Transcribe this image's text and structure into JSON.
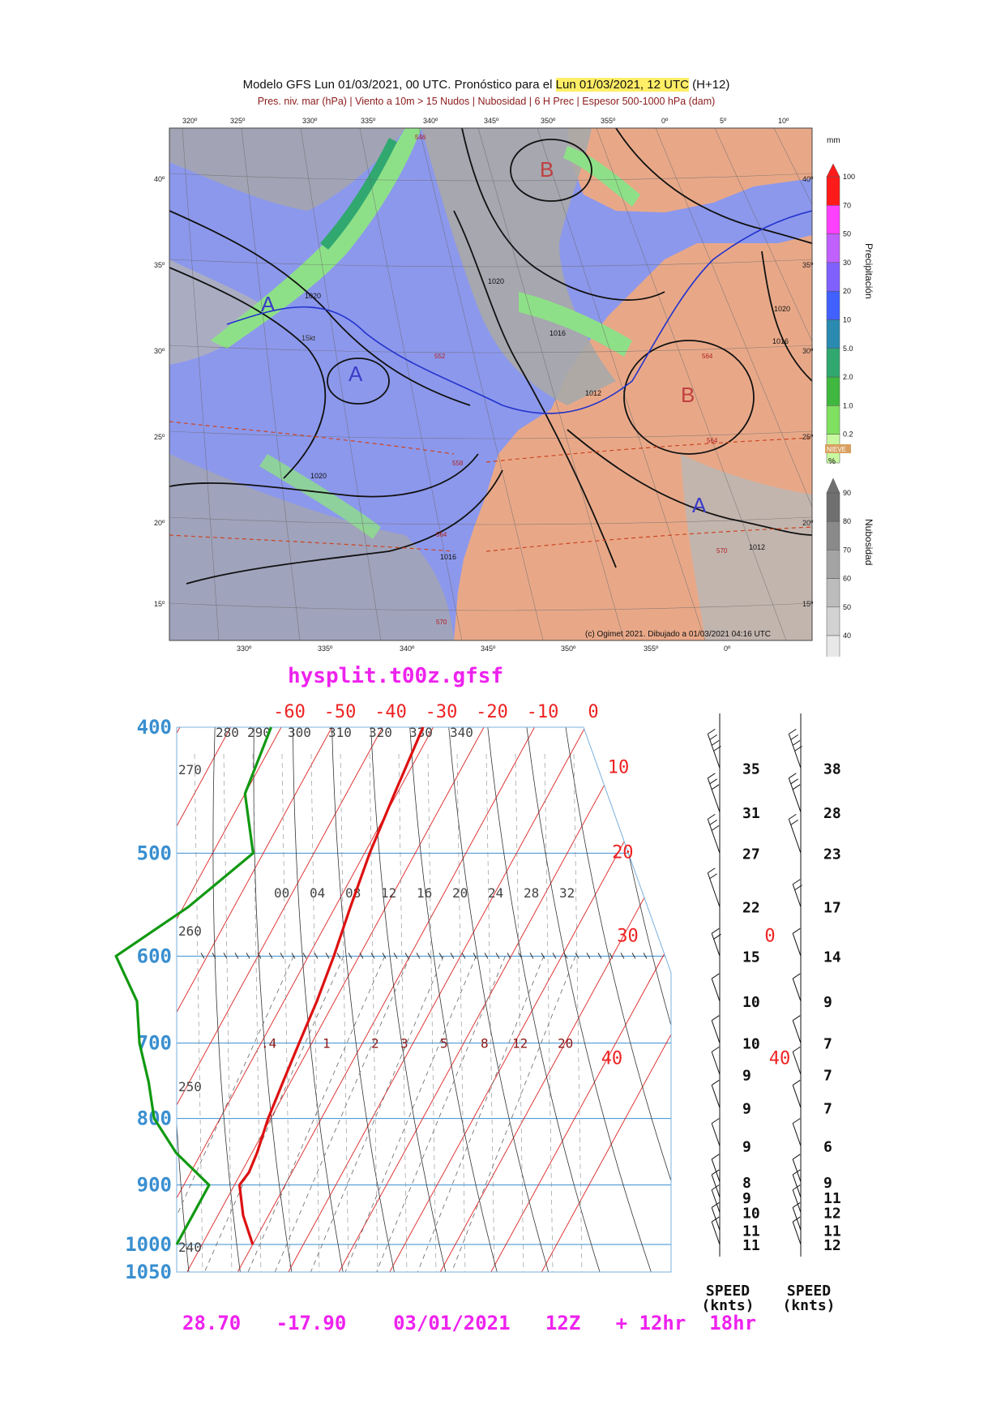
{
  "map": {
    "title_prefix": "Modelo GFS Lun 01/03/2021, 00 UTC. Pronóstico para el ",
    "title_highlight": "Lun 01/03/2021, 12 UTC",
    "title_suffix": " (H+12)",
    "subtitle": "Pres. niv. mar (hPa) | Viento a 10m > 15 Nudos | Nubosidad | 6 H Prec | Espesor 500-1000 hPa (dam)",
    "lon_top": [
      "320º",
      "325º",
      "330º",
      "335º",
      "340º",
      "345º",
      "350º",
      "355º",
      "0º",
      "5º",
      "10º"
    ],
    "lon_bottom": [
      "330º",
      "335º",
      "340º",
      "345º",
      "350º",
      "355º",
      "0º"
    ],
    "lat_left": [
      "40º",
      "35º",
      "30º",
      "25º",
      "20º",
      "15º"
    ],
    "lat_right": [
      "40º",
      "35º",
      "30º",
      "25º",
      "20º",
      "15º"
    ],
    "pressure_centers": [
      {
        "label": "A",
        "kind": "high"
      },
      {
        "label": "A",
        "kind": "high"
      },
      {
        "label": "B",
        "kind": "low"
      },
      {
        "label": "B",
        "kind": "low"
      },
      {
        "label": "A",
        "kind": "high"
      }
    ],
    "isobar_labels": [
      "1020",
      "1020",
      "1016",
      "1012",
      "1020",
      "1016",
      "1020",
      "1016",
      "1012"
    ],
    "thickness_labels": [
      "558",
      "552",
      "564",
      "564",
      "570",
      "546",
      "564",
      "570"
    ],
    "wind_label": "15kt",
    "credit": "(c) Ogimet 2021. Dibujado a 01/03/2021 04:16 UTC",
    "precip_legend": {
      "unit": "mm",
      "title": "Precipitación",
      "values": [
        "100",
        "70",
        "50",
        "30",
        "20",
        "10",
        "5.0",
        "2.0",
        "1.0",
        "0.2"
      ],
      "colors": [
        "#ff1a1a",
        "#ff40ff",
        "#c060ff",
        "#8060ff",
        "#4060ff",
        "#2a8ab0",
        "#30a870",
        "#40b840",
        "#80e060",
        "#c8f8a0"
      ],
      "snow_label": "NIEVE"
    },
    "cloud_legend": {
      "unit": "%",
      "title": "Nubosidad",
      "values": [
        "90",
        "80",
        "70",
        "60",
        "50",
        "40"
      ],
      "colors": [
        "#707070",
        "#8a8a8a",
        "#a4a4a4",
        "#bcbcbc",
        "#d2d2d2",
        "#e8e8e8"
      ]
    },
    "colors": {
      "land": "#e8a888",
      "ocean": "#8c98ec",
      "cloud": "#a8a8a8",
      "precip": "#8ee088",
      "high": "#3c3cc8",
      "low": "#c04040"
    }
  },
  "chart_data": {
    "type": "line",
    "title": "hysplit.t00z.gfsf",
    "footer": "28.70   -17.90    03/01/2021   12Z   + 12hr  18hr",
    "pressure_levels": [
      400,
      500,
      600,
      700,
      800,
      900,
      1000,
      1050
    ],
    "pressure_tick_labels": [
      "400",
      "500",
      "600",
      "700",
      "800",
      "900",
      "1000",
      "1050"
    ],
    "temperature_isotherm_labels": [
      "-60",
      "-50",
      "-40",
      "-30",
      "-20",
      "-10",
      "0",
      "10",
      "20",
      "30",
      "40"
    ],
    "theta_labels": [
      "280",
      "290",
      "300",
      "310",
      "320",
      "330",
      "340",
      "270",
      "260",
      "250",
      "240"
    ],
    "theta_e_labels": [
      "00",
      "04",
      "08",
      "12",
      "16",
      "20",
      "24",
      "28",
      "32"
    ],
    "mixing_ratio_labels": [
      ".4",
      "1",
      "2",
      "3",
      "5",
      "8",
      "12",
      "20"
    ],
    "side_labels": [
      "0",
      "40"
    ],
    "temperature_profile": {
      "name": "",
      "color": "#dd1111",
      "points": [
        [
          400,
          -32
        ],
        [
          450,
          -30.5
        ],
        [
          500,
          -29
        ],
        [
          550,
          -27
        ],
        [
          600,
          -25
        ],
        [
          650,
          -23.5
        ],
        [
          700,
          -22.5
        ],
        [
          750,
          -21.5
        ],
        [
          800,
          -20.5
        ],
        [
          850,
          -19
        ],
        [
          880,
          -18.5
        ],
        [
          900,
          -19
        ],
        [
          950,
          -15
        ],
        [
          1000,
          -10
        ]
      ]
    },
    "dewpoint_profile": {
      "name": "",
      "color": "#119911",
      "points": [
        [
          400,
          -62
        ],
        [
          450,
          -60
        ],
        [
          500,
          -52
        ],
        [
          550,
          -59
        ],
        [
          600,
          -68
        ],
        [
          650,
          -59
        ],
        [
          700,
          -54
        ],
        [
          750,
          -48
        ],
        [
          800,
          -43
        ],
        [
          850,
          -35
        ],
        [
          900,
          -25
        ],
        [
          950,
          -25
        ],
        [
          1000,
          -25
        ]
      ]
    },
    "wind_speed_columns": [
      {
        "header": [
          "SPEED",
          "(knts)"
        ],
        "rows": [
          {
            "p": 430,
            "speed": 35
          },
          {
            "p": 465,
            "speed": 31
          },
          {
            "p": 500,
            "speed": 27
          },
          {
            "p": 550,
            "speed": 22
          },
          {
            "p": 600,
            "speed": 15
          },
          {
            "p": 650,
            "speed": 10
          },
          {
            "p": 700,
            "speed": 10
          },
          {
            "p": 740,
            "speed": 9
          },
          {
            "p": 785,
            "speed": 9
          },
          {
            "p": 840,
            "speed": 9
          },
          {
            "p": 895,
            "speed": 8
          },
          {
            "p": 920,
            "speed": 9
          },
          {
            "p": 945,
            "speed": 10
          },
          {
            "p": 975,
            "speed": 11
          },
          {
            "p": 1000,
            "speed": 11
          }
        ]
      },
      {
        "header": [
          "SPEED",
          "(knts)"
        ],
        "rows": [
          {
            "p": 430,
            "speed": 38
          },
          {
            "p": 465,
            "speed": 28
          },
          {
            "p": 500,
            "speed": 23
          },
          {
            "p": 550,
            "speed": 17
          },
          {
            "p": 600,
            "speed": 14
          },
          {
            "p": 650,
            "speed": 9
          },
          {
            "p": 700,
            "speed": 7
          },
          {
            "p": 740,
            "speed": 7
          },
          {
            "p": 785,
            "speed": 7
          },
          {
            "p": 840,
            "speed": 6
          },
          {
            "p": 895,
            "speed": 9
          },
          {
            "p": 920,
            "speed": 11
          },
          {
            "p": 945,
            "speed": 12
          },
          {
            "p": 975,
            "speed": 11
          },
          {
            "p": 1000,
            "speed": 12
          }
        ]
      }
    ],
    "colors": {
      "pressure_axis": "#3a8fd0",
      "isotherm": "#dd2222",
      "theta": "#333333",
      "mixing": "#666666",
      "title": "#ee22ee"
    }
  }
}
